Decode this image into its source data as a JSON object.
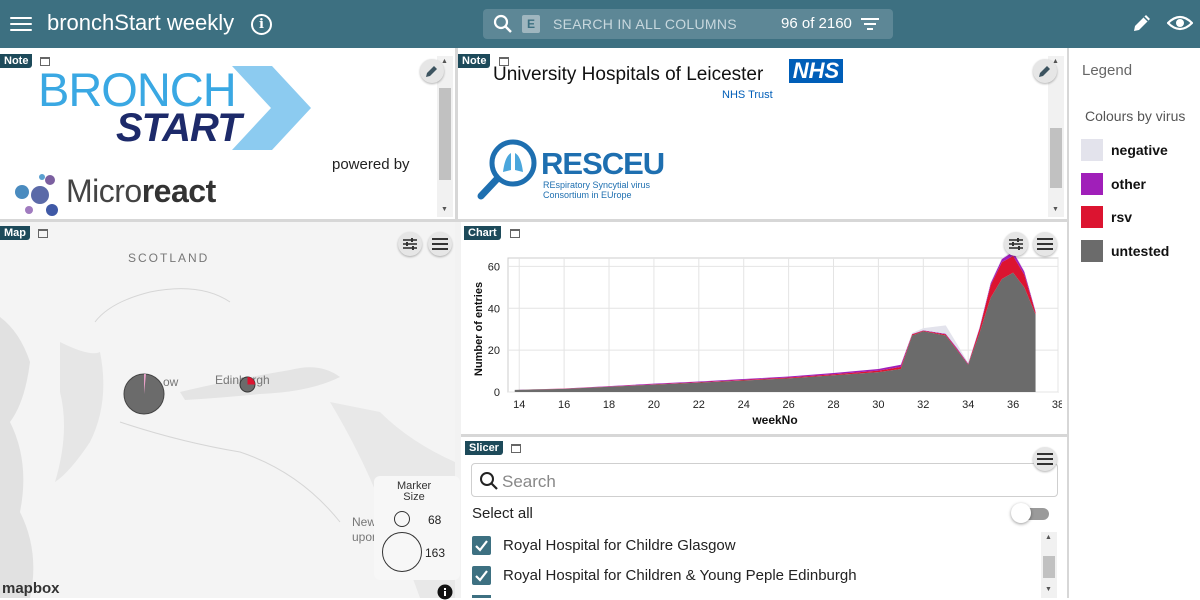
{
  "app": {
    "title": "bronchStart weekly",
    "info_symbol": "i"
  },
  "search": {
    "badge": "E",
    "placeholder": "SEARCH IN ALL COLUMNS",
    "count": "96 of 2160"
  },
  "panels": {
    "note1_tag": "Note",
    "note2_tag": "Note",
    "map_tag": "Map",
    "chart_tag": "Chart",
    "slicer_tag": "Slicer"
  },
  "note1": {
    "logo_bronch": "BRONCH",
    "logo_start": "START",
    "powered_by": "powered by",
    "microreact_a": "Micro",
    "microreact_b": "react"
  },
  "note2": {
    "uhl": "University Hospitals of Leicester",
    "nhs": "NHS",
    "nhs_trust": "NHS Trust",
    "resceu": "RESCEU",
    "resceu_sub1": "REspiratory Syncytial virus",
    "resceu_sub2": "Consortium in EUrope"
  },
  "map": {
    "labels": {
      "scotland": "SCOTLAND",
      "glasgow": "ow",
      "edinburgh": "Edinburgh",
      "newcastle": "Newcas",
      "upon": "upon"
    },
    "marker_size_title": "Marker Size",
    "marker_small": "68",
    "marker_large": "163",
    "attribution": "mapbox"
  },
  "legend": {
    "title": "Legend",
    "subtitle": "Colours by virus",
    "items": [
      {
        "label": "negative",
        "color": "#e3e3ec"
      },
      {
        "label": "other",
        "color": "#a01fb9"
      },
      {
        "label": "rsv",
        "color": "#dc1430"
      },
      {
        "label": "untested",
        "color": "#6b6b6b"
      }
    ]
  },
  "chart_data": {
    "type": "area",
    "xlabel": "weekNo",
    "ylabel": "Number of entries",
    "xlim": [
      13.5,
      38
    ],
    "ylim": [
      0,
      64
    ],
    "x_ticks": [
      14,
      16,
      18,
      20,
      22,
      24,
      26,
      28,
      30,
      32,
      34,
      36,
      38
    ],
    "y_ticks": [
      0,
      20,
      40,
      60
    ],
    "grid": true,
    "x": [
      13.8,
      16,
      18,
      20,
      22,
      24,
      26,
      28,
      30,
      31,
      31.5,
      32,
      33,
      33.5,
      34,
      34.5,
      35,
      35.5,
      36,
      36.5,
      37
    ],
    "series": [
      {
        "name": "untested",
        "values": [
          1,
          1.5,
          2.5,
          3.5,
          4.5,
          5.5,
          6.5,
          8,
          9.5,
          11,
          27,
          29,
          27,
          20,
          13,
          28,
          45,
          54,
          57,
          50,
          37
        ]
      },
      {
        "name": "rsv",
        "values": [
          0,
          0.1,
          0.1,
          0.2,
          0.2,
          0.3,
          0.4,
          0.5,
          0.7,
          1,
          0.5,
          0.3,
          0.5,
          0.5,
          0.3,
          2,
          6,
          8,
          8,
          6,
          1
        ]
      },
      {
        "name": "other",
        "values": [
          0,
          0.1,
          0.2,
          0.3,
          0.3,
          0.4,
          0.5,
          0.6,
          0.8,
          1,
          0.2,
          0.2,
          0.3,
          0.5,
          0.3,
          0.5,
          1,
          1.5,
          2,
          1.5,
          0.5
        ]
      },
      {
        "name": "negative",
        "values": [
          0,
          0,
          0,
          0,
          0,
          0,
          0,
          0,
          0,
          0,
          0.5,
          1,
          4,
          2,
          0.3,
          0.5,
          0.5,
          0.5,
          0.5,
          0.5,
          0.2
        ]
      }
    ]
  },
  "slicer": {
    "search_placeholder": "Search",
    "select_all": "Select all",
    "items": [
      {
        "label": "Royal Hospital for Childre Glasgow",
        "checked": true
      },
      {
        "label": "Royal Hospital for Children & Young Peple Edinburgh",
        "checked": true
      }
    ]
  }
}
